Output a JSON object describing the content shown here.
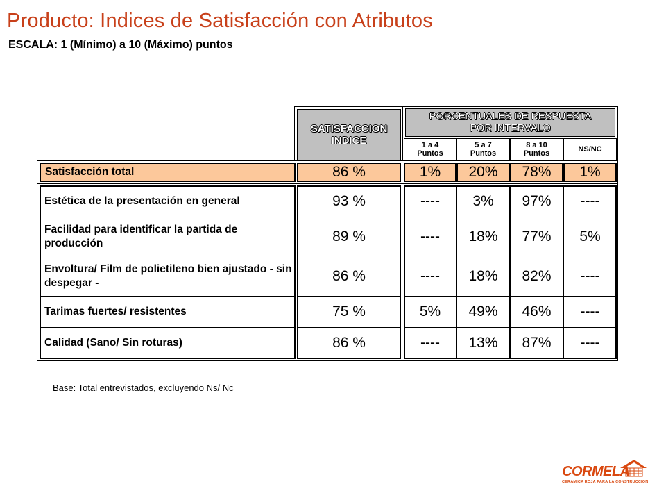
{
  "header": {
    "title": "Producto:  Indices de Satisfacción con Atributos",
    "subtitle": "ESCALA: 1 (Mínimo) a 10 (Máximo) puntos"
  },
  "table": {
    "col_satisfaccion": "SATISFACCION\nINDICE",
    "col_porcentuales": "PORCENTUALES DE RESPUESTA\nPOR INTERVALO",
    "intervals": [
      "1 a 4\nPuntos",
      "5 a 7\nPuntos",
      "8 a 10\nPuntos",
      "NS/NC"
    ],
    "total_row": {
      "label": "Satisfacción total",
      "index": "86 %",
      "values": [
        "1%",
        "20%",
        "78%",
        "1%"
      ]
    },
    "rows": [
      {
        "label": "Estética de la presentación en general",
        "index": "93 %",
        "values": [
          "----",
          "3%",
          "97%",
          "----"
        ]
      },
      {
        "label": "Facilidad para identificar la partida de producción",
        "index": "89 %",
        "values": [
          "----",
          "18%",
          "77%",
          "5%"
        ]
      },
      {
        "label": "Envoltura/ Film de polietileno bien ajustado - sin despegar -",
        "index": "86 %",
        "values": [
          "----",
          "18%",
          "82%",
          "----"
        ]
      },
      {
        "label": "Tarimas fuertes/ resistentes",
        "index": "75 %",
        "values": [
          "5%",
          "49%",
          "46%",
          "----"
        ]
      },
      {
        "label": "Calidad (Sano/ Sin roturas)",
        "index": "86 %",
        "values": [
          "----",
          "13%",
          "87%",
          "----"
        ]
      }
    ]
  },
  "footnote": "Base: Total entrevistados, excluyendo Ns/ Nc",
  "logo": {
    "name": "CORMELA",
    "tagline": "CERAMICA ROJA PARA LA CONSTRUCCION",
    "color": "#d9480f"
  },
  "colors": {
    "title": "#c8401a",
    "highlight": "#fcc89b",
    "header_fill": "#c0c0c0"
  }
}
